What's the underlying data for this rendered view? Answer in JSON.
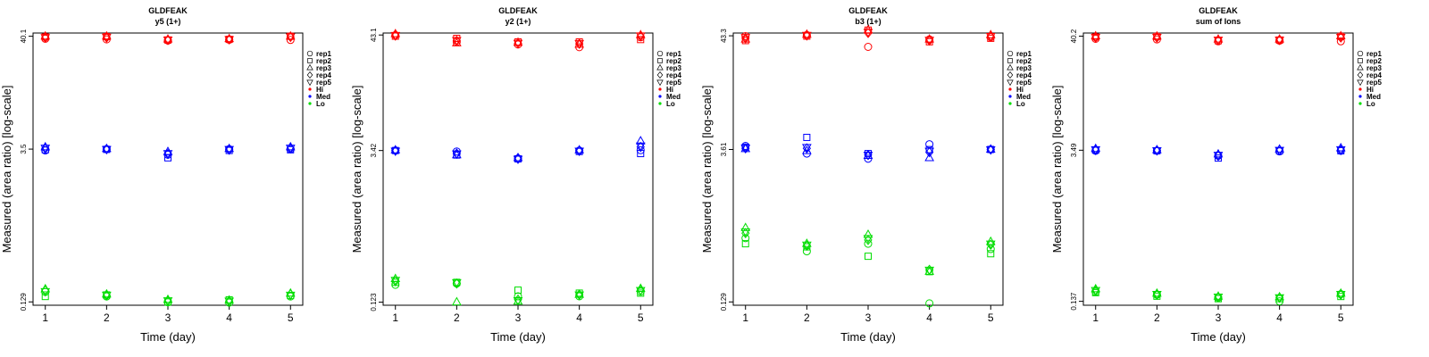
{
  "chart_data": [
    {
      "type": "scatter",
      "title": "GLDFEAK",
      "subtitle": "y5 (1+)",
      "xlabel": "Time (day)",
      "ylabel": "Measured (area ratio) [log-scale]",
      "xticks": [
        "1",
        "2",
        "3",
        "4",
        "5"
      ],
      "yticks": [
        "0.129",
        "3.5",
        "40.1"
      ],
      "y_scale": "log",
      "ylim": [
        0.12,
        43
      ],
      "legend": {
        "placement": "right",
        "entries": [
          "rep1",
          "rep2",
          "rep3",
          "rep4",
          "rep5",
          "Hi",
          "Med",
          "Lo"
        ]
      },
      "series": [
        {
          "name": "Hi",
          "color": "#ff0000",
          "points": {
            "rep1": [
              38.0,
              37.5,
              36.5,
              37.2,
              37.0
            ],
            "rep2": [
              39.5,
              39.8,
              37.0,
              37.5,
              40.1
            ],
            "rep3": [
              40.0,
              40.0,
              37.5,
              37.8,
              40.0
            ],
            "rep4": [
              39.0,
              39.0,
              37.0,
              37.5,
              39.5
            ],
            "rep5": [
              39.2,
              39.5,
              37.2,
              37.6,
              39.8
            ]
          }
        },
        {
          "name": "Med",
          "color": "#0000ff",
          "points": {
            "rep1": [
              3.4,
              3.5,
              3.1,
              3.5,
              3.5
            ],
            "rep2": [
              3.45,
              3.48,
              2.9,
              3.4,
              3.45
            ],
            "rep3": [
              3.65,
              3.52,
              3.3,
              3.52,
              3.65
            ],
            "rep4": [
              3.55,
              3.5,
              3.15,
              3.45,
              3.55
            ],
            "rep5": [
              3.6,
              3.5,
              3.2,
              3.5,
              3.6
            ]
          }
        },
        {
          "name": "Lo",
          "color": "#00dd00",
          "points": {
            "rep1": [
              0.16,
              0.145,
              0.128,
              0.127,
              0.145
            ],
            "rep2": [
              0.145,
              0.15,
              0.129,
              0.135,
              0.148
            ],
            "rep3": [
              0.17,
              0.152,
              0.135,
              0.133,
              0.155
            ],
            "rep4": [
              0.165,
              0.148,
              0.132,
              0.131,
              0.152
            ],
            "rep5": [
              0.162,
              0.15,
              0.133,
              0.132,
              0.15
            ]
          }
        }
      ]
    },
    {
      "type": "scatter",
      "title": "GLDFEAK",
      "subtitle": "y2 (1+)",
      "xlabel": "Time (day)",
      "ylabel": "Measured (area ratio) [log-scale]",
      "xticks": [
        "1",
        "2",
        "3",
        "4",
        "5"
      ],
      "yticks": [
        "0.123",
        "3.42",
        "43.1"
      ],
      "y_scale": "log",
      "ylim": [
        0.115,
        45
      ],
      "legend": {
        "placement": "right",
        "entries": [
          "rep1",
          "rep2",
          "rep3",
          "rep4",
          "rep5",
          "Hi",
          "Med",
          "Lo"
        ]
      },
      "series": [
        {
          "name": "Hi",
          "color": "#ff0000",
          "points": {
            "rep1": [
              43.0,
              37.0,
              35.0,
              33.0,
              41.0
            ],
            "rep2": [
              42.0,
              40.0,
              37.0,
              37.0,
              39.0
            ],
            "rep3": [
              44.0,
              36.0,
              36.5,
              35.0,
              43.0
            ],
            "rep4": [
              42.5,
              38.0,
              36.0,
              35.5,
              42.0
            ],
            "rep5": [
              43.0,
              38.5,
              36.2,
              36.0,
              42.5
            ]
          }
        },
        {
          "name": "Med",
          "color": "#0000ff",
          "points": {
            "rep1": [
              3.42,
              3.35,
              2.85,
              3.42,
              3.45
            ],
            "rep2": [
              3.42,
              3.1,
              2.85,
              3.35,
              3.2
            ],
            "rep3": [
              3.45,
              3.1,
              2.9,
              3.45,
              4.2
            ],
            "rep4": [
              3.42,
              3.2,
              2.9,
              3.4,
              3.7
            ],
            "rep5": [
              3.4,
              3.2,
              2.85,
              3.4,
              3.8
            ]
          }
        },
        {
          "name": "Lo",
          "color": "#00dd00",
          "points": {
            "rep1": [
              0.18,
              0.185,
              0.14,
              0.14,
              0.155
            ],
            "rep2": [
              0.19,
              0.19,
              0.16,
              0.15,
              0.15
            ],
            "rep3": [
              0.205,
              0.123,
              0.125,
              0.145,
              0.165
            ],
            "rep4": [
              0.195,
              0.185,
              0.13,
              0.145,
              0.16
            ],
            "rep5": [
              0.2,
              0.19,
              0.128,
              0.145,
              0.16
            ]
          }
        }
      ]
    },
    {
      "type": "scatter",
      "title": "GLDFEAK",
      "subtitle": "b3 (1+)",
      "xlabel": "Time (day)",
      "ylabel": "Measured (area ratio) [log-scale]",
      "xticks": [
        "1",
        "2",
        "3",
        "4",
        "5"
      ],
      "yticks": [
        "0.129",
        "3.61",
        "43.3"
      ],
      "y_scale": "log",
      "ylim": [
        0.12,
        46
      ],
      "legend": {
        "placement": "right",
        "entries": [
          "rep1",
          "rep2",
          "rep3",
          "rep4",
          "rep5",
          "Hi",
          "Med",
          "Lo"
        ]
      },
      "series": [
        {
          "name": "Hi",
          "color": "#ff0000",
          "points": {
            "rep1": [
              43.0,
              44.0,
              34.0,
              40.0,
              42.0
            ],
            "rep2": [
              39.0,
              43.0,
              49.0,
              38.0,
              41.0
            ],
            "rep3": [
              40.0,
              44.5,
              49.0,
              40.0,
              44.0
            ],
            "rep4": [
              41.0,
              43.5,
              46.0,
              39.0,
              42.5
            ],
            "rep5": [
              42.0,
              44.0,
              47.0,
              39.5,
              43.0
            ]
          }
        },
        {
          "name": "Med",
          "color": "#0000ff",
          "points": {
            "rep1": [
              3.9,
              3.3,
              2.95,
              4.05,
              3.61
            ],
            "rep2": [
              3.8,
              4.7,
              3.3,
              3.6,
              3.61
            ],
            "rep3": [
              3.65,
              3.5,
              3.15,
              3.0,
              3.61
            ],
            "rep4": [
              3.7,
              3.7,
              3.2,
              3.4,
              3.61
            ],
            "rep5": [
              3.75,
              3.8,
              3.2,
              3.5,
              3.61
            ]
          }
        },
        {
          "name": "Lo",
          "color": "#00dd00",
          "points": {
            "rep1": [
              0.52,
              0.39,
              0.46,
              0.125,
              0.41
            ],
            "rep2": [
              0.46,
              0.43,
              0.35,
              0.25,
              0.37
            ],
            "rep3": [
              0.65,
              0.46,
              0.56,
              0.25,
              0.48
            ],
            "rep4": [
              0.58,
              0.44,
              0.5,
              0.26,
              0.45
            ],
            "rep5": [
              0.6,
              0.45,
              0.52,
              0.26,
              0.46
            ]
          }
        }
      ]
    },
    {
      "type": "scatter",
      "title": "GLDFEAK",
      "subtitle": "sum of Ions",
      "xlabel": "Time (day)",
      "ylabel": "Measured (area ratio) [log-scale]",
      "xticks": [
        "1",
        "2",
        "3",
        "4",
        "5"
      ],
      "yticks": [
        "0.137",
        "3.49",
        "40.2"
      ],
      "y_scale": "log",
      "ylim": [
        0.126,
        43
      ],
      "legend": {
        "placement": "right",
        "entries": [
          "rep1",
          "rep2",
          "rep3",
          "rep4",
          "rep5",
          "Hi",
          "Med",
          "Lo"
        ]
      },
      "series": [
        {
          "name": "Hi",
          "color": "#ff0000",
          "points": {
            "rep1": [
              38.0,
              37.5,
              36.0,
              36.5,
              36.0
            ],
            "rep2": [
              39.5,
              40.0,
              36.5,
              37.0,
              40.0
            ],
            "rep3": [
              40.2,
              40.0,
              37.5,
              37.5,
              40.2
            ],
            "rep4": [
              39.0,
              39.0,
              37.0,
              37.0,
              39.0
            ],
            "rep5": [
              39.5,
              39.5,
              37.2,
              37.2,
              39.5
            ]
          }
        },
        {
          "name": "Med",
          "color": "#0000ff",
          "points": {
            "rep1": [
              3.45,
              3.45,
              3.1,
              3.4,
              3.45
            ],
            "rep2": [
              3.5,
              3.45,
              2.95,
              3.45,
              3.45
            ],
            "rep3": [
              3.6,
              3.5,
              3.2,
              3.55,
              3.65
            ],
            "rep4": [
              3.5,
              3.48,
              3.1,
              3.5,
              3.5
            ],
            "rep5": [
              3.55,
              3.48,
              3.15,
              3.5,
              3.55
            ]
          }
        },
        {
          "name": "Lo",
          "color": "#00dd00",
          "points": {
            "rep1": [
              0.168,
              0.158,
              0.148,
              0.137,
              0.16
            ],
            "rep2": [
              0.165,
              0.153,
              0.145,
              0.145,
              0.152
            ],
            "rep3": [
              0.178,
              0.162,
              0.152,
              0.15,
              0.162
            ],
            "rep4": [
              0.172,
              0.158,
              0.15,
              0.148,
              0.158
            ],
            "rep5": [
              0.174,
              0.16,
              0.151,
              0.149,
              0.16
            ]
          }
        }
      ]
    }
  ]
}
